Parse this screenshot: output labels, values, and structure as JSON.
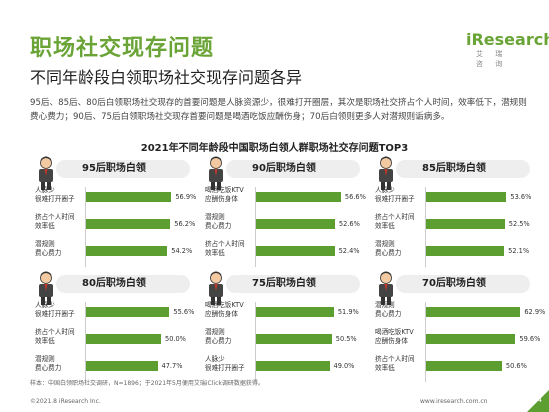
{
  "header": {
    "title": "职场社交现存问题",
    "subtitle": "不同年龄段白领职场社交现存问题各异",
    "logo_text": "iResearch",
    "logo_sub": "艾 瑞 咨 询"
  },
  "description": "95后、85后、80后白领职场社交现存的首要问题是人脉资源少，很难打开圈层，其次是职场社交挤占个人时间，效率低下，潜规则费心费力；90后、75后白领职场社交现存首要问题是喝酒吃饭应酬伤身；70后白领则更多人对潜规则诟病多。",
  "footer": {
    "note": "样本：中国白领职场社交调研，N=1896；于2021年5月便用艾瑞iClick调研数据获得。",
    "copyright": "©2021.8 iResearch Inc.",
    "url": "www.iresearch.com.cn",
    "page": "24"
  },
  "colors": {
    "accent": "#6aa436",
    "bar": "#5c9e2f"
  },
  "chart_data": {
    "type": "bar",
    "title": "2021年不同年龄段中国职场白领人群职场社交存问题TOP3",
    "panels": [
      {
        "name": "95后职场白领",
        "categories": [
          "人脉少\n很难打开圈子",
          "挤占个人时间\n效率低",
          "潜规则\n费心费力"
        ],
        "labels": [
          "56.9%",
          "56.2%",
          "54.2%"
        ],
        "values": [
          56.9,
          56.2,
          54.2
        ]
      },
      {
        "name": "90后职场白领",
        "categories": [
          "喝酒吃饭KTV\n应酬伤身体",
          "潜规则\n费心费力",
          "挤占个人时间\n效率低"
        ],
        "labels": [
          "56.6%",
          "52.6%",
          "52.4%"
        ],
        "values": [
          56.6,
          52.6,
          52.4
        ]
      },
      {
        "name": "85后职场白领",
        "categories": [
          "人脉少\n很难打开圈子",
          "挤占个人时间\n效率低",
          "潜规则\n费心费力"
        ],
        "labels": [
          "53.6%",
          "52.5%",
          "52.1%"
        ],
        "values": [
          53.6,
          52.5,
          52.1
        ]
      },
      {
        "name": "80后职场白领",
        "categories": [
          "人脉少\n很难打开圈子",
          "挤占个人时间\n效率低",
          "潜规则\n费心费力"
        ],
        "labels": [
          "55.6%",
          "50.0%",
          "47.7%"
        ],
        "values": [
          55.6,
          50.0,
          47.7
        ]
      },
      {
        "name": "75后职场白领",
        "categories": [
          "喝酒吃饭KTV\n应酬伤身体",
          "潜规则\n费心费力",
          "人脉少\n很难打开圈子"
        ],
        "labels": [
          "51.9%",
          "50.5%",
          "49.0%"
        ],
        "values": [
          51.9,
          50.5,
          49.0
        ]
      },
      {
        "name": "70后职场白领",
        "categories": [
          "潜规则\n费心费力",
          "喝酒吃饭KTV\n应酬伤身体",
          "挤占个人时间\n效率低"
        ],
        "labels": [
          "62.9%",
          "59.6%",
          "50.6%"
        ],
        "values": [
          62.9,
          59.6,
          50.6
        ]
      }
    ]
  }
}
